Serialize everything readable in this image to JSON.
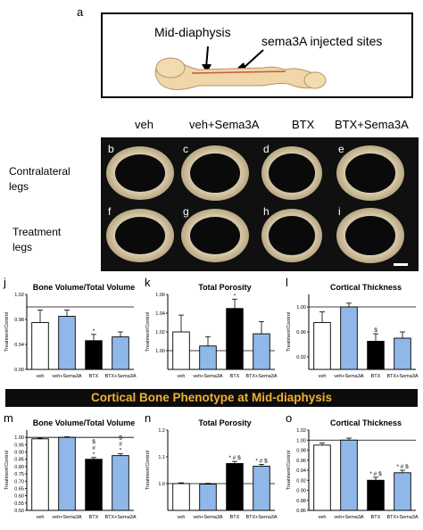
{
  "panel_a": {
    "letter": "a",
    "label_left": "Mid-diaphysis",
    "label_right": "sema3A injected sites"
  },
  "micro": {
    "column_headers": [
      "veh",
      "veh+Sema3A",
      "BTX",
      "BTX+Sema3A"
    ],
    "row_labels": [
      [
        "Contralateral",
        "legs"
      ],
      [
        "Treatment",
        "legs"
      ]
    ],
    "tile_letters": [
      [
        "b",
        "c",
        "d",
        "e"
      ],
      [
        "f",
        "g",
        "h",
        "i"
      ]
    ]
  },
  "banner": "Cortical Bone Phenotype at Mid-diaphysis",
  "colors": {
    "veh": "#ffffff",
    "sema": "#8fb8e8",
    "btx": "#000000",
    "banner_text": "#f0b030"
  },
  "chart_data": [
    {
      "panel": "j",
      "type": "bar",
      "title": "Bone Volume/Total Volume",
      "ylabel": "Treatment/Control",
      "categories": [
        "veh",
        "veh+Sema3A",
        "BTX",
        "BTX+Sema3A"
      ],
      "values": [
        0.975,
        0.985,
        0.946,
        0.952
      ],
      "errors": [
        0.02,
        0.01,
        0.01,
        0.008
      ],
      "ylim": [
        0.9,
        1.02
      ],
      "yticks": [
        "0.90",
        "0.94",
        "0.98",
        "1.02"
      ],
      "ref_line": 1.0,
      "annotations": [
        "",
        "",
        "*",
        ""
      ]
    },
    {
      "panel": "k",
      "type": "bar",
      "title": "Total Porosity",
      "ylabel": "Treatment/Control",
      "categories": [
        "veh",
        "veh+Sema3A",
        "BTX",
        "BTX+Sema3A"
      ],
      "values": [
        1.02,
        1.005,
        1.045,
        1.018
      ],
      "errors": [
        0.018,
        0.01,
        0.01,
        0.013
      ],
      "ylim": [
        0.98,
        1.06
      ],
      "yticks": [
        "1.00",
        "1.02",
        "1.04",
        "1.06"
      ],
      "ref_line": 1.0,
      "annotations": [
        "",
        "",
        "*",
        ""
      ]
    },
    {
      "panel": "l",
      "type": "bar",
      "title": "Cortical Thickness",
      "ylabel": "Treatment/Control",
      "categories": [
        "veh",
        "veh+Sema3A",
        "BTX",
        "BTX+Sema3A"
      ],
      "values": [
        0.975,
        1.0,
        0.945,
        0.95
      ],
      "errors": [
        0.017,
        0.006,
        0.012,
        0.01
      ],
      "ylim": [
        0.9,
        1.02
      ],
      "yticks": [
        "0.92",
        "0.96",
        "1.00"
      ],
      "ref_line": 1.0,
      "annotations": [
        "",
        "",
        "$",
        ""
      ]
    },
    {
      "panel": "m",
      "type": "bar",
      "title": "Bone Volume/Total Volume",
      "ylabel": "Treatment/Control",
      "categories": [
        "veh",
        "veh+Sema3A",
        "BTX",
        "BTX+Sema3A"
      ],
      "values": [
        0.99,
        1.0,
        0.85,
        0.875
      ],
      "errors": [
        0.004,
        0.004,
        0.012,
        0.012
      ],
      "ylim": [
        0.5,
        1.05
      ],
      "yticks": [
        "0.50",
        "0.55",
        "0.60",
        "0.65",
        "0.70",
        "0.75",
        "0.80",
        "0.85",
        "0.90",
        "0.95",
        "1.00"
      ],
      "ref_line": 1.0,
      "annotations": [
        "",
        "",
        "$\n#\n*",
        "$\n#\n*"
      ]
    },
    {
      "panel": "n",
      "type": "bar",
      "title": "Total Porosity",
      "ylabel": "Treatment/Control",
      "categories": [
        "veh",
        "veh+Sema3A",
        "BTX",
        "BTX+Sema3A"
      ],
      "values": [
        1.0,
        0.998,
        1.075,
        1.065
      ],
      "errors": [
        0.003,
        0.003,
        0.008,
        0.007
      ],
      "ylim": [
        0.9,
        1.2
      ],
      "yticks": [
        "1.0",
        "1.1",
        "1.2"
      ],
      "ref_line": 1.0,
      "annotations": [
        "",
        "",
        "* # $",
        "* # $"
      ]
    },
    {
      "panel": "o",
      "type": "bar",
      "title": "Cortical Thickness",
      "ylabel": "Treatment/Control",
      "categories": [
        "veh",
        "veh+Sema3A",
        "BTX",
        "BTX+Sema3A"
      ],
      "values": [
        0.99,
        1.0,
        0.92,
        0.935
      ],
      "errors": [
        0.004,
        0.004,
        0.006,
        0.005
      ],
      "ylim": [
        0.86,
        1.02
      ],
      "yticks": [
        "0.86",
        "0.88",
        "0.90",
        "0.92",
        "0.94",
        "0.96",
        "0.98",
        "1.00",
        "1.02"
      ],
      "ref_line": 1.0,
      "annotations": [
        "",
        "",
        "* # $",
        "* # $"
      ]
    }
  ]
}
